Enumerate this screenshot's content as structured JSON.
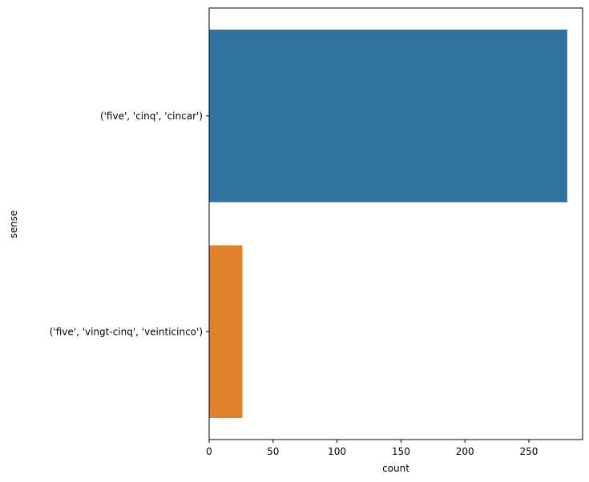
{
  "chart_data": {
    "type": "bar",
    "orientation": "horizontal",
    "categories": [
      "('five', 'cinq', 'cincar')",
      "('five', 'vingt-cinq', 'veinticinco')"
    ],
    "values": [
      280,
      26
    ],
    "colors": [
      "#3274a1",
      "#e1812c"
    ],
    "xlabel": "count",
    "ylabel": "sense",
    "xlim": [
      0,
      292
    ],
    "xticks": [
      0,
      50,
      100,
      150,
      200,
      250
    ],
    "grid": false
  }
}
